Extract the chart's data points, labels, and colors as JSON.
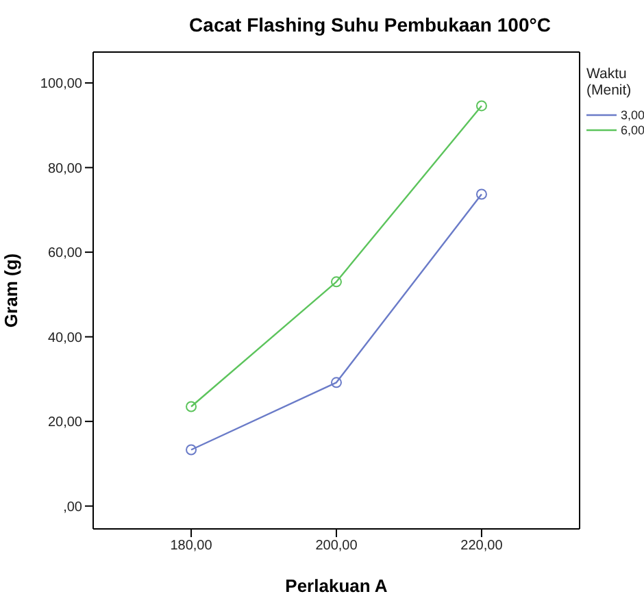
{
  "chart_data": {
    "type": "line",
    "title": "Cacat Flashing Suhu Pembukaan 100°C",
    "xlabel": "Perlakuan A",
    "ylabel": "Gram (g)",
    "legend_title": "Waktu (Menit)",
    "x": [
      180,
      200,
      220
    ],
    "series": [
      {
        "name": "3,00",
        "color": "#6a7bc8",
        "values": [
          13.3,
          29.2,
          73.7
        ]
      },
      {
        "name": "6,00",
        "color": "#5cc45c",
        "values": [
          23.5,
          53.0,
          94.6
        ]
      }
    ],
    "xlim": [
      166.5,
      233.5
    ],
    "xticks": [
      {
        "value": 180,
        "label": "180,00"
      },
      {
        "value": 200,
        "label": "200,00"
      },
      {
        "value": 220,
        "label": "220,00"
      }
    ],
    "ylim": [
      -5.4,
      107.3
    ],
    "yticks": [
      {
        "value": 0,
        "label": ",00"
      },
      {
        "value": 20,
        "label": "20,00"
      },
      {
        "value": 40,
        "label": "40,00"
      },
      {
        "value": 60,
        "label": "60,00"
      },
      {
        "value": 80,
        "label": "80,00"
      },
      {
        "value": 100,
        "label": "100,00"
      }
    ],
    "marker": "circle",
    "grid": false,
    "legend": "top right"
  }
}
